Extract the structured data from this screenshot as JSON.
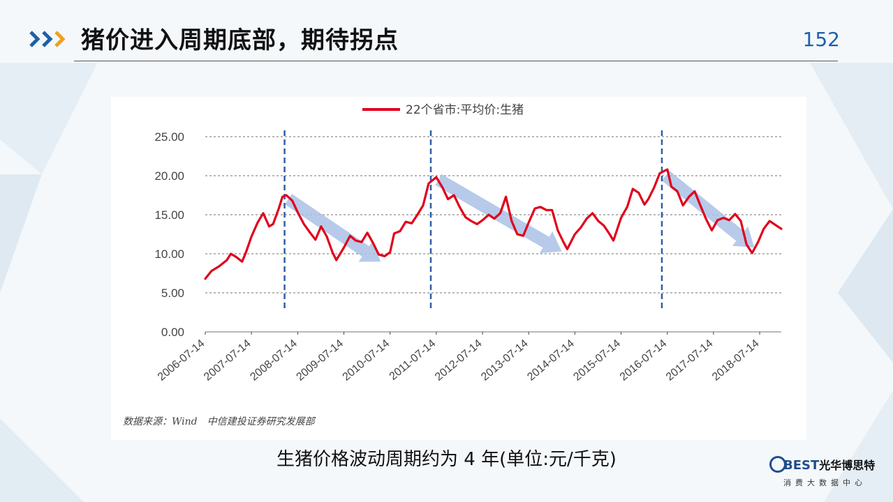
{
  "slide": {
    "title": "猪价进入周期底部，期待拐点",
    "page_number": "152",
    "source_note": "数据来源：Wind　中信建投证券研究发展部",
    "caption": "生猪价格波动周期约为 4 年(单位:元/千克)"
  },
  "logo": {
    "brand_en": "BEST",
    "brand_cn": "光华博思特",
    "tagline": "消费大数据中心"
  },
  "colors": {
    "series": "#e0001b",
    "cycle_marker": "#2e5fa8",
    "trend_arrow": "#aac1e6",
    "accent_blue": "#1f5fa8",
    "accent_orange": "#f0a020"
  },
  "chart_data": {
    "type": "line",
    "title": "",
    "xlabel": "",
    "ylabel": "",
    "legend": {
      "placement": "top-center",
      "entries": [
        "22个省市:平均价:生猪"
      ]
    },
    "ylim": [
      0,
      25
    ],
    "yticks": [
      "0.00",
      "5.00",
      "10.00",
      "15.00",
      "20.00",
      "25.00"
    ],
    "xlim": [
      "2006-07-14",
      "2019-01-01"
    ],
    "xticks": [
      "2006-07-14",
      "2007-07-14",
      "2008-07-14",
      "2009-07-14",
      "2010-07-14",
      "2011-07-14",
      "2012-07-14",
      "2013-07-14",
      "2014-07-14",
      "2015-07-14",
      "2016-07-14",
      "2017-07-14",
      "2018-07-14"
    ],
    "grid": "horizontal dashed",
    "cycle_markers": [
      "2008-04-01",
      "2011-06-01",
      "2016-06-01"
    ],
    "trend_arrows": [
      {
        "from": [
          "2008-05-01",
          17.0
        ],
        "to": [
          "2010-05-01",
          9.0
        ]
      },
      {
        "from": [
          "2011-08-01",
          19.5
        ],
        "to": [
          "2014-04-01",
          10.3
        ]
      },
      {
        "from": [
          "2016-07-01",
          20.0
        ],
        "to": [
          "2018-06-01",
          10.8
        ]
      }
    ],
    "series": [
      {
        "name": "22个省市:平均价:生猪",
        "points": [
          [
            "2006-07-14",
            6.8
          ],
          [
            "2006-09-01",
            7.8
          ],
          [
            "2006-11-01",
            8.4
          ],
          [
            "2007-01-01",
            9.2
          ],
          [
            "2007-02-01",
            10.0
          ],
          [
            "2007-03-15",
            9.6
          ],
          [
            "2007-05-01",
            9.0
          ],
          [
            "2007-06-01",
            10.2
          ],
          [
            "2007-07-14",
            12.2
          ],
          [
            "2007-09-01",
            14.0
          ],
          [
            "2007-10-15",
            15.2
          ],
          [
            "2007-12-01",
            13.5
          ],
          [
            "2008-01-01",
            13.8
          ],
          [
            "2008-02-15",
            15.8
          ],
          [
            "2008-03-15",
            17.3
          ],
          [
            "2008-04-15",
            17.5
          ],
          [
            "2008-06-01",
            16.8
          ],
          [
            "2008-07-14",
            15.3
          ],
          [
            "2008-09-01",
            13.8
          ],
          [
            "2008-10-15",
            12.8
          ],
          [
            "2008-12-01",
            11.8
          ],
          [
            "2009-01-15",
            13.5
          ],
          [
            "2009-03-01",
            12.2
          ],
          [
            "2009-04-15",
            10.2
          ],
          [
            "2009-05-15",
            9.2
          ],
          [
            "2009-07-14",
            10.8
          ],
          [
            "2009-09-01",
            12.3
          ],
          [
            "2009-10-15",
            11.7
          ],
          [
            "2009-12-01",
            11.5
          ],
          [
            "2010-01-15",
            12.7
          ],
          [
            "2010-03-01",
            11.4
          ],
          [
            "2010-04-15",
            9.9
          ],
          [
            "2010-06-01",
            9.7
          ],
          [
            "2010-07-14",
            10.2
          ],
          [
            "2010-08-15",
            12.6
          ],
          [
            "2010-10-01",
            12.9
          ],
          [
            "2010-11-15",
            14.1
          ],
          [
            "2011-01-01",
            13.9
          ],
          [
            "2011-02-15",
            15.0
          ],
          [
            "2011-04-01",
            16.2
          ],
          [
            "2011-05-15",
            19.0
          ],
          [
            "2011-07-14",
            19.8
          ],
          [
            "2011-09-01",
            18.5
          ],
          [
            "2011-10-15",
            17.0
          ],
          [
            "2011-12-01",
            17.5
          ],
          [
            "2012-01-15",
            16.0
          ],
          [
            "2012-03-01",
            14.7
          ],
          [
            "2012-04-15",
            14.2
          ],
          [
            "2012-06-01",
            13.8
          ],
          [
            "2012-07-14",
            14.3
          ],
          [
            "2012-09-01",
            15.0
          ],
          [
            "2012-10-15",
            14.5
          ],
          [
            "2012-12-01",
            15.2
          ],
          [
            "2013-01-15",
            17.3
          ],
          [
            "2013-03-01",
            14.2
          ],
          [
            "2013-04-15",
            12.5
          ],
          [
            "2013-06-01",
            12.3
          ],
          [
            "2013-07-14",
            14.0
          ],
          [
            "2013-09-01",
            15.8
          ],
          [
            "2013-10-15",
            16.0
          ],
          [
            "2013-12-01",
            15.6
          ],
          [
            "2014-01-15",
            15.6
          ],
          [
            "2014-03-01",
            13.0
          ],
          [
            "2014-04-15",
            11.5
          ],
          [
            "2014-05-15",
            10.6
          ],
          [
            "2014-07-14",
            12.5
          ],
          [
            "2014-09-01",
            13.4
          ],
          [
            "2014-10-15",
            14.5
          ],
          [
            "2014-12-01",
            15.2
          ],
          [
            "2015-01-15",
            14.2
          ],
          [
            "2015-03-01",
            13.6
          ],
          [
            "2015-04-15",
            12.5
          ],
          [
            "2015-05-15",
            11.7
          ],
          [
            "2015-07-14",
            14.6
          ],
          [
            "2015-09-01",
            16.0
          ],
          [
            "2015-10-15",
            18.3
          ],
          [
            "2015-12-01",
            17.8
          ],
          [
            "2016-01-15",
            16.3
          ],
          [
            "2016-02-15",
            17.0
          ],
          [
            "2016-04-01",
            18.5
          ],
          [
            "2016-05-15",
            20.3
          ],
          [
            "2016-07-14",
            20.8
          ],
          [
            "2016-08-15",
            18.6
          ],
          [
            "2016-10-01",
            18.0
          ],
          [
            "2016-11-15",
            16.2
          ],
          [
            "2017-01-01",
            17.3
          ],
          [
            "2017-02-15",
            18.0
          ],
          [
            "2017-04-01",
            16.2
          ],
          [
            "2017-05-15",
            14.5
          ],
          [
            "2017-07-01",
            13.0
          ],
          [
            "2017-08-15",
            14.3
          ],
          [
            "2017-10-01",
            14.6
          ],
          [
            "2017-11-15",
            14.3
          ],
          [
            "2018-01-01",
            15.1
          ],
          [
            "2018-02-15",
            14.2
          ],
          [
            "2018-04-01",
            11.2
          ],
          [
            "2018-05-15",
            10.1
          ],
          [
            "2018-07-01",
            11.5
          ],
          [
            "2018-08-15",
            13.2
          ],
          [
            "2018-10-01",
            14.2
          ],
          [
            "2018-11-15",
            13.7
          ],
          [
            "2019-01-01",
            13.2
          ]
        ]
      }
    ]
  }
}
